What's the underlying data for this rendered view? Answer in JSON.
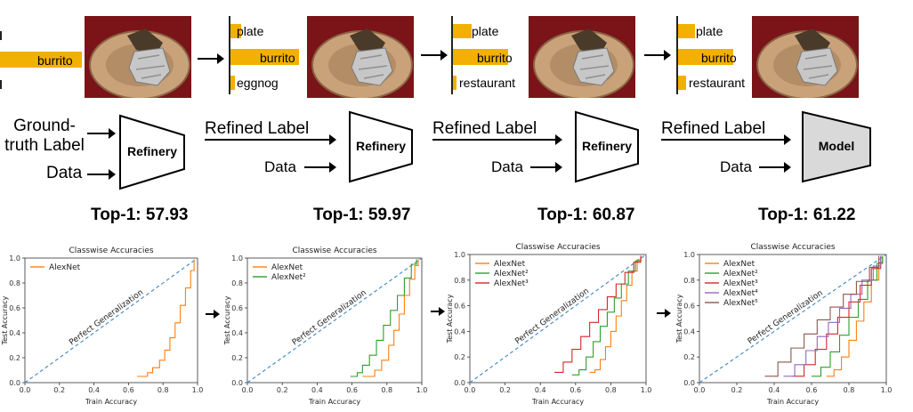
{
  "stages": [
    {
      "labels": [
        {
          "name": "burrito",
          "value": 1.0
        }
      ],
      "process": {
        "label": "Refinery",
        "kind": "refinery"
      },
      "input_label": "Ground-\ntruth Label",
      "data_label": "Data",
      "score": "Top-1: 57.93"
    },
    {
      "labels": [
        {
          "name": "plate",
          "value": 0.15
        },
        {
          "name": "burrito",
          "value": 1.0
        },
        {
          "name": "eggnog",
          "value": 0.06
        }
      ],
      "process": {
        "label": "Refinery",
        "kind": "refinery"
      },
      "input_label": "Refined Label",
      "data_label": "Data",
      "score": "Top-1: 59.97"
    },
    {
      "labels": [
        {
          "name": "plate",
          "value": 0.28
        },
        {
          "name": "burrito",
          "value": 0.82
        },
        {
          "name": "restaurant",
          "value": 0.05
        }
      ],
      "process": {
        "label": "Refinery",
        "kind": "refinery"
      },
      "input_label": "Refined Label",
      "data_label": "Data",
      "score": "Top-1: 60.87"
    },
    {
      "labels": [
        {
          "name": "plate",
          "value": 0.25
        },
        {
          "name": "burrito",
          "value": 0.82
        },
        {
          "name": "restaurant",
          "value": 0.12
        }
      ],
      "process": {
        "label": "Model",
        "kind": "model"
      },
      "input_label": "Refined Label",
      "data_label": "Data",
      "score": "Top-1: 61.22"
    }
  ],
  "colors": {
    "bar": "#f2b100",
    "photo_bg": "#7a1418",
    "plate": "#c9a27a",
    "refinery_fill": "#ffffff",
    "model_fill": "#d9d9d9",
    "perfect_line": "#4a90c8"
  },
  "chart_data": [
    {
      "type": "line",
      "title": "Classwise Accuracies",
      "xlabel": "Train Accuracy",
      "ylabel": "Test Accuracy",
      "xlim": [
        0.0,
        1.0
      ],
      "ylim": [
        0.0,
        1.0
      ],
      "xticks": [
        "0.0",
        "0.2",
        "0.4",
        "0.6",
        "0.8",
        "1.0"
      ],
      "yticks": [
        "0.0",
        "0.2",
        "0.4",
        "0.6",
        "0.8",
        "1.0"
      ],
      "annotation": "Perfect Generalization",
      "series": [
        {
          "name": "AlexNet",
          "color": "#ff7f0e",
          "x": [
            0.65,
            0.7,
            0.71,
            0.74,
            0.78,
            0.81,
            0.84,
            0.87,
            0.9,
            0.93,
            0.96,
            0.98
          ],
          "y": [
            0.05,
            0.05,
            0.08,
            0.12,
            0.18,
            0.26,
            0.36,
            0.48,
            0.62,
            0.76,
            0.9,
            0.99
          ]
        }
      ]
    },
    {
      "type": "line",
      "title": "Classwise Accuracies",
      "xlabel": "Train Accuracy",
      "ylabel": "Test Accuracy",
      "xlim": [
        0.0,
        1.0
      ],
      "ylim": [
        0.0,
        1.0
      ],
      "xticks": [
        "0.0",
        "0.2",
        "0.4",
        "0.6",
        "0.8",
        "1.0"
      ],
      "yticks": [
        "0.0",
        "0.2",
        "0.4",
        "0.6",
        "0.8",
        "1.0"
      ],
      "annotation": "Perfect Generalization",
      "series": [
        {
          "name": "AlexNet",
          "color": "#ff7f0e",
          "x": [
            0.66,
            0.7,
            0.73,
            0.77,
            0.81,
            0.84,
            0.87,
            0.9,
            0.93,
            0.96,
            0.98
          ],
          "y": [
            0.05,
            0.05,
            0.1,
            0.18,
            0.3,
            0.42,
            0.55,
            0.7,
            0.83,
            0.94,
            0.99
          ]
        },
        {
          "name": "AlexNet²",
          "color": "#2ca02c",
          "x": [
            0.59,
            0.63,
            0.66,
            0.7,
            0.74,
            0.78,
            0.82,
            0.86,
            0.9,
            0.94,
            0.97
          ],
          "y": [
            0.05,
            0.08,
            0.14,
            0.22,
            0.34,
            0.46,
            0.58,
            0.7,
            0.84,
            0.95,
            0.99
          ]
        }
      ]
    },
    {
      "type": "line",
      "title": "Classwise Accuracies",
      "xlabel": "Train Accuracy",
      "ylabel": "Test Accuracy",
      "xlim": [
        0.0,
        1.0
      ],
      "ylim": [
        0.0,
        1.0
      ],
      "xticks": [
        "0.0",
        "0.2",
        "0.4",
        "0.6",
        "0.8",
        "1.0"
      ],
      "yticks": [
        "0.0",
        "0.2",
        "0.4",
        "0.6",
        "0.8",
        "1.0"
      ],
      "annotation": "Perfect Generalization",
      "series": [
        {
          "name": "AlexNet",
          "color": "#ff7f0e",
          "x": [
            0.68,
            0.71,
            0.74,
            0.77,
            0.8,
            0.83,
            0.86,
            0.89,
            0.92,
            0.95,
            0.97
          ],
          "y": [
            0.08,
            0.1,
            0.18,
            0.28,
            0.4,
            0.52,
            0.64,
            0.76,
            0.87,
            0.96,
            0.99
          ]
        },
        {
          "name": "AlexNet²",
          "color": "#2ca02c",
          "x": [
            0.58,
            0.62,
            0.66,
            0.7,
            0.74,
            0.78,
            0.82,
            0.86,
            0.9,
            0.94,
            0.97
          ],
          "y": [
            0.06,
            0.1,
            0.2,
            0.32,
            0.44,
            0.55,
            0.66,
            0.77,
            0.87,
            0.95,
            0.99
          ]
        },
        {
          "name": "AlexNet³",
          "color": "#d62728",
          "x": [
            0.48,
            0.53,
            0.58,
            0.63,
            0.68,
            0.73,
            0.78,
            0.83,
            0.88,
            0.93,
            0.97
          ],
          "y": [
            0.08,
            0.16,
            0.26,
            0.36,
            0.47,
            0.57,
            0.67,
            0.77,
            0.86,
            0.94,
            0.99
          ]
        }
      ]
    },
    {
      "type": "line",
      "title": "Classwise Accuracies",
      "xlabel": "Train Accuracy",
      "ylabel": "Test Accuracy",
      "xlim": [
        0.0,
        1.0
      ],
      "ylim": [
        0.0,
        1.0
      ],
      "xticks": [
        "0.0",
        "0.2",
        "0.4",
        "0.6",
        "0.8",
        "1.0"
      ],
      "yticks": [
        "0.0",
        "0.2",
        "0.4",
        "0.6",
        "0.8",
        "1.0"
      ],
      "annotation": "Perfect Generalization",
      "series": [
        {
          "name": "AlexNet",
          "color": "#ff7f0e",
          "x": [
            0.68,
            0.72,
            0.76,
            0.8,
            0.84,
            0.88,
            0.92,
            0.96,
            0.98
          ],
          "y": [
            0.05,
            0.1,
            0.2,
            0.33,
            0.48,
            0.63,
            0.8,
            0.94,
            0.99
          ]
        },
        {
          "name": "AlexNet²",
          "color": "#2ca02c",
          "x": [
            0.6,
            0.65,
            0.7,
            0.75,
            0.8,
            0.85,
            0.9,
            0.95,
            0.98
          ],
          "y": [
            0.05,
            0.12,
            0.24,
            0.37,
            0.51,
            0.65,
            0.8,
            0.93,
            0.99
          ]
        },
        {
          "name": "AlexNet³",
          "color": "#d62728",
          "x": [
            0.5,
            0.56,
            0.62,
            0.68,
            0.74,
            0.8,
            0.86,
            0.92,
            0.97
          ],
          "y": [
            0.05,
            0.14,
            0.26,
            0.38,
            0.51,
            0.63,
            0.76,
            0.89,
            0.99
          ]
        },
        {
          "name": "AlexNet⁴",
          "color": "#9467bd",
          "x": [
            0.45,
            0.51,
            0.57,
            0.63,
            0.69,
            0.75,
            0.81,
            0.87,
            0.93,
            0.97
          ],
          "y": [
            0.05,
            0.14,
            0.25,
            0.36,
            0.47,
            0.58,
            0.69,
            0.8,
            0.91,
            0.99
          ]
        },
        {
          "name": "AlexNet⁵",
          "color": "#8c564b",
          "x": [
            0.35,
            0.42,
            0.49,
            0.56,
            0.63,
            0.7,
            0.77,
            0.84,
            0.91,
            0.96
          ],
          "y": [
            0.05,
            0.16,
            0.27,
            0.38,
            0.49,
            0.59,
            0.69,
            0.79,
            0.9,
            0.99
          ]
        }
      ]
    }
  ]
}
